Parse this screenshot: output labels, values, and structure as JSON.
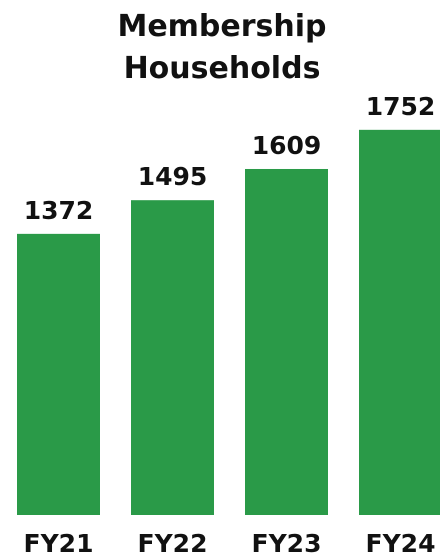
{
  "chart_data": {
    "type": "bar",
    "title": "Membership Households",
    "categories": [
      "FY21",
      "FY22",
      "FY23",
      "FY24"
    ],
    "values": [
      1372,
      1495,
      1609,
      1752
    ],
    "color": "#2a9a48",
    "ylim": [
      345,
      1861
    ]
  }
}
